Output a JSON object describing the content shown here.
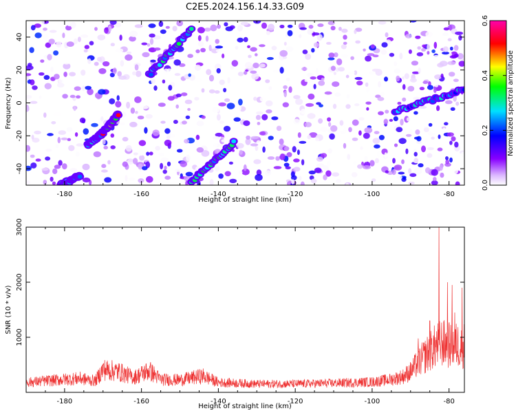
{
  "title": "C2E5.2024.156.14.33.G09",
  "chart_data": [
    {
      "type": "heatmap",
      "xlabel": "Height of straight line (km)",
      "ylabel": "Frequency (Hz)",
      "xlim": [
        -190,
        -76
      ],
      "ylim": [
        -50,
        50
      ],
      "x_ticks": [
        -180,
        -160,
        -140,
        -120,
        -100,
        -80
      ],
      "y_ticks": [
        -40,
        -20,
        0,
        20,
        40
      ],
      "colorbar": {
        "label": "Normalized spectral amplitude",
        "range": [
          0,
          0.6
        ],
        "ticks": [
          0.0,
          0.2,
          0.4,
          0.6
        ],
        "colors": [
          "#ffffff",
          "#8800ff",
          "#0000ff",
          "#00e0ff",
          "#00ff00",
          "#ffff00",
          "#ff0000",
          "#ff00aa"
        ]
      },
      "streaks": [
        {
          "x": [
            -181,
            -176
          ],
          "y": [
            -50,
            -44
          ],
          "amplitude": 0.3
        },
        {
          "x": [
            -174,
            -170
          ],
          "y": [
            -26,
            -18
          ],
          "amplitude": 0.25
        },
        {
          "x": [
            -170,
            -166
          ],
          "y": [
            -18,
            -7
          ],
          "amplitude": 0.5
        },
        {
          "x": [
            -158,
            -147
          ],
          "y": [
            17,
            45
          ],
          "amplitude": 0.3
        },
        {
          "x": [
            -147,
            -136
          ],
          "y": [
            -48,
            -24
          ],
          "amplitude": 0.3
        },
        {
          "x": [
            -94,
            -76
          ],
          "y": [
            -5,
            8
          ],
          "amplitude": 0.25
        }
      ]
    },
    {
      "type": "line",
      "xlabel": "Height of straight line (km)",
      "ylabel": "SNR (10 * v/v)",
      "xlim": [
        -190,
        -76
      ],
      "ylim": [
        0,
        3000
      ],
      "x_ticks": [
        -180,
        -160,
        -140,
        -120,
        -100,
        -80
      ],
      "y_ticks": [
        1000,
        2000,
        3000
      ],
      "color": "#ee3333",
      "profile": {
        "x": [
          -190,
          -180,
          -176,
          -172,
          -170,
          -166,
          -162,
          -158,
          -155,
          -150,
          -144,
          -140,
          -130,
          -120,
          -110,
          -100,
          -95,
          -92,
          -90,
          -88,
          -86,
          -84,
          -82,
          -80,
          -78,
          -76
        ],
        "y": [
          200,
          260,
          280,
          230,
          460,
          420,
          300,
          440,
          260,
          250,
          330,
          200,
          170,
          170,
          185,
          210,
          260,
          320,
          420,
          600,
          750,
          900,
          1000,
          950,
          950,
          950
        ]
      },
      "spikes": [
        {
          "x": -82.6,
          "y": 3000
        },
        {
          "x": -80.4,
          "y": 2000
        },
        {
          "x": -79.2,
          "y": 1950
        },
        {
          "x": -76.6,
          "y": 1900
        },
        {
          "x": -78.5,
          "y": 1450
        },
        {
          "x": -85.0,
          "y": 1300
        },
        {
          "x": -88.0,
          "y": 980
        }
      ]
    }
  ]
}
